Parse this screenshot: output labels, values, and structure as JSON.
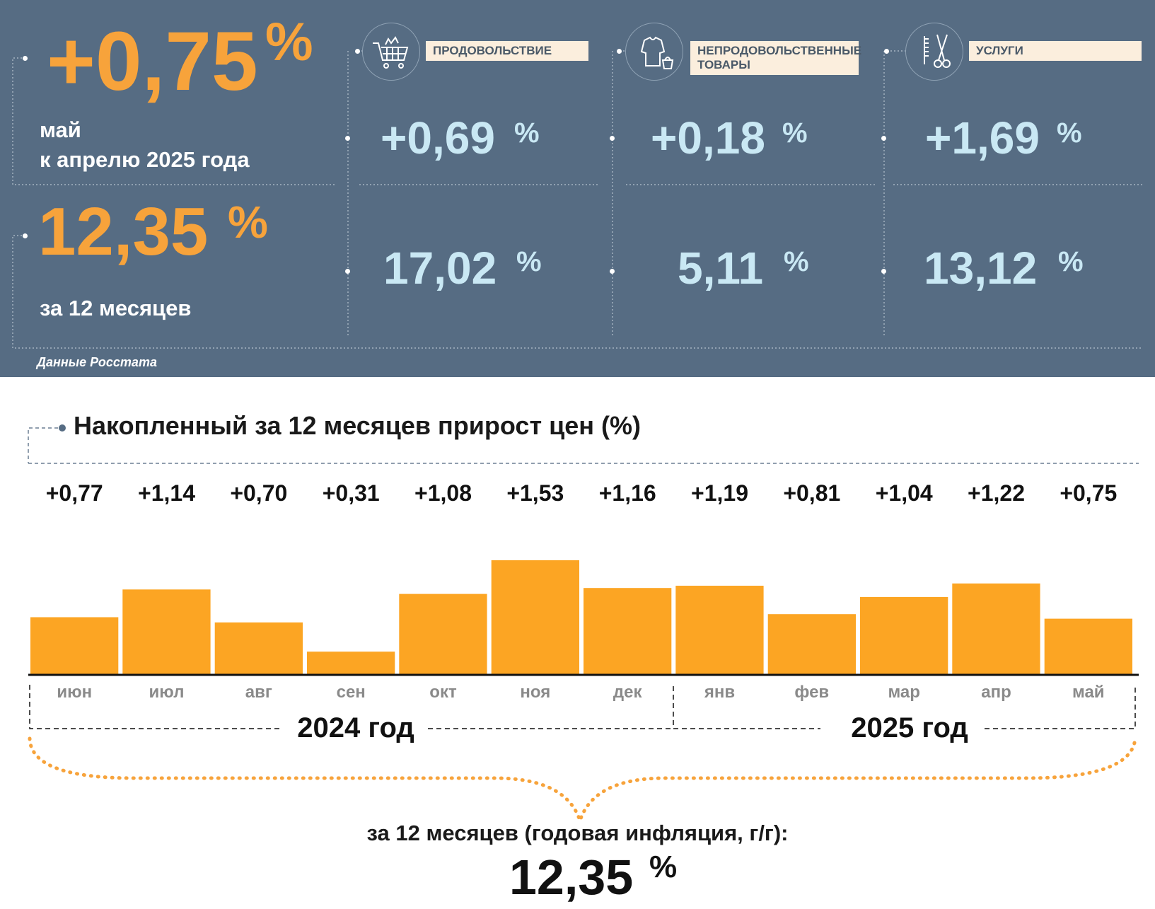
{
  "summary": {
    "monthly_value": "+0,75",
    "monthly_percent": "%",
    "monthly_line1": "май",
    "monthly_line2": "к апрелю 2025 года",
    "annual_value": "12,35",
    "annual_percent": "%",
    "annual_caption": "за 12 месяцев",
    "source": "Данные Росстата"
  },
  "categories": [
    {
      "label": "ПРОДОВОЛЬСТВИЕ",
      "monthly": "+0,69",
      "annual": "17,02",
      "icon": "shopping-cart-icon"
    },
    {
      "label": "НЕПРОДОВОЛЬСТВЕННЫЕ ТОВАРЫ",
      "label_line1": "НЕПРОДОВОЛЬСТВЕННЫЕ",
      "label_line2": "ТОВАРЫ",
      "monthly": "+0,18",
      "annual": "5,11",
      "icon": "clothing-icon"
    },
    {
      "label": "УСЛУГИ",
      "monthly": "+1,69",
      "annual": "13,12",
      "icon": "scissors-comb-icon"
    }
  ],
  "percent_sign": "%",
  "chart_title": "Накопленный за 12 месяцев прирост цен (%)",
  "chart_data": {
    "type": "bar",
    "title": "Накопленный за 12 месяцев прирост цен (%)",
    "categories": [
      "июн",
      "июл",
      "авг",
      "сен",
      "окт",
      "ноя",
      "дек",
      "янв",
      "фев",
      "мар",
      "апр",
      "май"
    ],
    "values": [
      0.77,
      1.14,
      0.7,
      0.31,
      1.08,
      1.53,
      1.16,
      1.19,
      0.81,
      1.04,
      1.22,
      0.75
    ],
    "value_labels": [
      "+0,77",
      "+1,14",
      "+0,70",
      "+0,31",
      "+1,08",
      "+1,53",
      "+1,16",
      "+1,19",
      "+0,81",
      "+1,04",
      "+1,22",
      "+0,75"
    ],
    "groups": [
      {
        "label": "2024 год",
        "months": [
          "июн",
          "июл",
          "авг",
          "сен",
          "окт",
          "ноя",
          "дек"
        ]
      },
      {
        "label": "2025 год",
        "months": [
          "янв",
          "фев",
          "мар",
          "апр",
          "май"
        ]
      }
    ],
    "color": "#fca523",
    "grid": false
  },
  "footer": {
    "caption": "за 12 месяцев (годовая инфляция, г/г):",
    "value": "12,35",
    "percent": "%"
  }
}
